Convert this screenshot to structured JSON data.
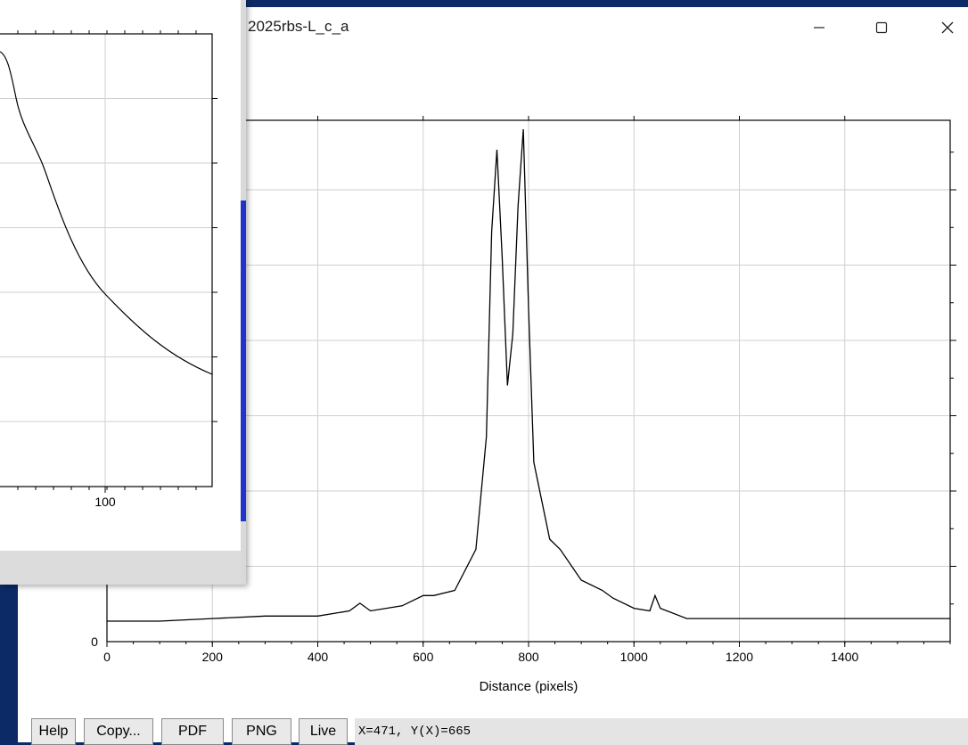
{
  "window": {
    "title": "2025rbs-L_c_a",
    "minimize_icon": "minimize-icon",
    "maximize_icon": "maximize-icon",
    "close_icon": "close-icon"
  },
  "plot": {
    "xlabel": "Distance (pixels)",
    "x_ticks": [
      "0",
      "200",
      "400",
      "600",
      "800",
      "1000",
      "1200",
      "1400"
    ],
    "y_tick_zero": "0"
  },
  "chart_data": {
    "type": "line",
    "xlabel": "Distance (pixels)",
    "xlim": [
      0,
      1600
    ],
    "grid": true,
    "series": [
      {
        "x": [
          0,
          100,
          200,
          300,
          400,
          460,
          480,
          500,
          560,
          600,
          620,
          660,
          700,
          720,
          730,
          740,
          750,
          760,
          770,
          780,
          790,
          800,
          810,
          840,
          860,
          880,
          900,
          940,
          960,
          1000,
          1030,
          1040,
          1050,
          1100,
          1200,
          1400,
          1600
        ],
        "y": [
          0.04,
          0.04,
          0.045,
          0.05,
          0.05,
          0.06,
          0.075,
          0.06,
          0.07,
          0.09,
          0.09,
          0.1,
          0.18,
          0.4,
          0.8,
          0.96,
          0.75,
          0.5,
          0.6,
          0.85,
          1.0,
          0.65,
          0.35,
          0.2,
          0.18,
          0.15,
          0.12,
          0.1,
          0.085,
          0.065,
          0.06,
          0.09,
          0.065,
          0.045,
          0.045,
          0.045,
          0.045
        ]
      }
    ]
  },
  "buttons": {
    "help": "Help",
    "copy": "Copy...",
    "pdf": "PDF",
    "png": "PNG",
    "live": "Live"
  },
  "status": {
    "readout": "X=471, Y(X)=665"
  },
  "small_plot": {
    "x_tick": "100"
  }
}
